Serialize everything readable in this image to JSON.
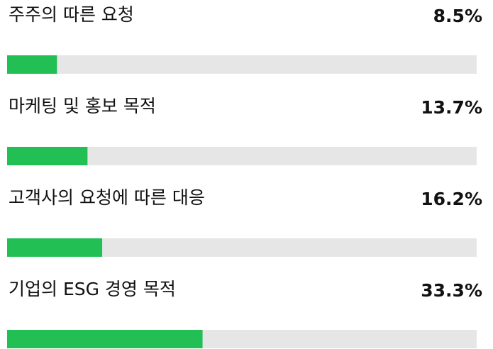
{
  "chart_data": {
    "type": "bar",
    "orientation": "horizontal",
    "categories": [
      "주주의 따른 요청",
      "마케팅 및 홍보 목적",
      "고객사의 요청에 따른 대응",
      "기업의 ESG 경영 목적"
    ],
    "values": [
      8.5,
      13.7,
      16.2,
      33.3
    ],
    "value_labels": [
      "8.5%",
      "13.7%",
      "16.2%",
      "33.3%"
    ],
    "color": "#22bf55",
    "track_color": "#e6e6e6",
    "xlim": [
      0,
      80
    ]
  }
}
